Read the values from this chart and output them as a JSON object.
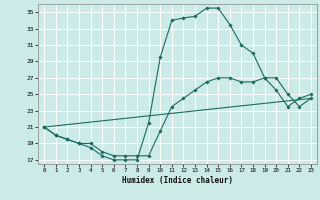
{
  "xlabel": "Humidex (Indice chaleur)",
  "bg_color": "#cceae8",
  "grid_color": "#ffffff",
  "line_color": "#1a6b60",
  "xlim": [
    -0.5,
    23.5
  ],
  "ylim": [
    16.5,
    36
  ],
  "yticks": [
    17,
    19,
    21,
    23,
    25,
    27,
    29,
    31,
    33,
    35
  ],
  "xticks": [
    0,
    1,
    2,
    3,
    4,
    5,
    6,
    7,
    8,
    9,
    10,
    11,
    12,
    13,
    14,
    15,
    16,
    17,
    18,
    19,
    20,
    21,
    22,
    23
  ],
  "line1_x": [
    0,
    1,
    2,
    3,
    4,
    5,
    6,
    7,
    8,
    9,
    10,
    11,
    12,
    13,
    14,
    15,
    16,
    17,
    18,
    19,
    20,
    21,
    22,
    23
  ],
  "line1_y": [
    21,
    20,
    19.5,
    19,
    18.5,
    17.5,
    17,
    17,
    17,
    21.5,
    29.5,
    34,
    34.3,
    34.5,
    35.5,
    35.5,
    33.5,
    31,
    30,
    27,
    25.5,
    23.5,
    24.5,
    25
  ],
  "line2_x": [
    0,
    1,
    2,
    3,
    4,
    5,
    6,
    7,
    8,
    9,
    10,
    11,
    12,
    13,
    14,
    15,
    16,
    17,
    18,
    19,
    20,
    21,
    22,
    23
  ],
  "line2_y": [
    21,
    20,
    19.5,
    19,
    19,
    18,
    17.5,
    17.5,
    17.5,
    17.5,
    20.5,
    23.5,
    24.5,
    25.5,
    26.5,
    27,
    27,
    26.5,
    26.5,
    27.0,
    27.0,
    25.0,
    23.5,
    24.5
  ],
  "line3_x": [
    0,
    23
  ],
  "line3_y": [
    21,
    24.5
  ]
}
